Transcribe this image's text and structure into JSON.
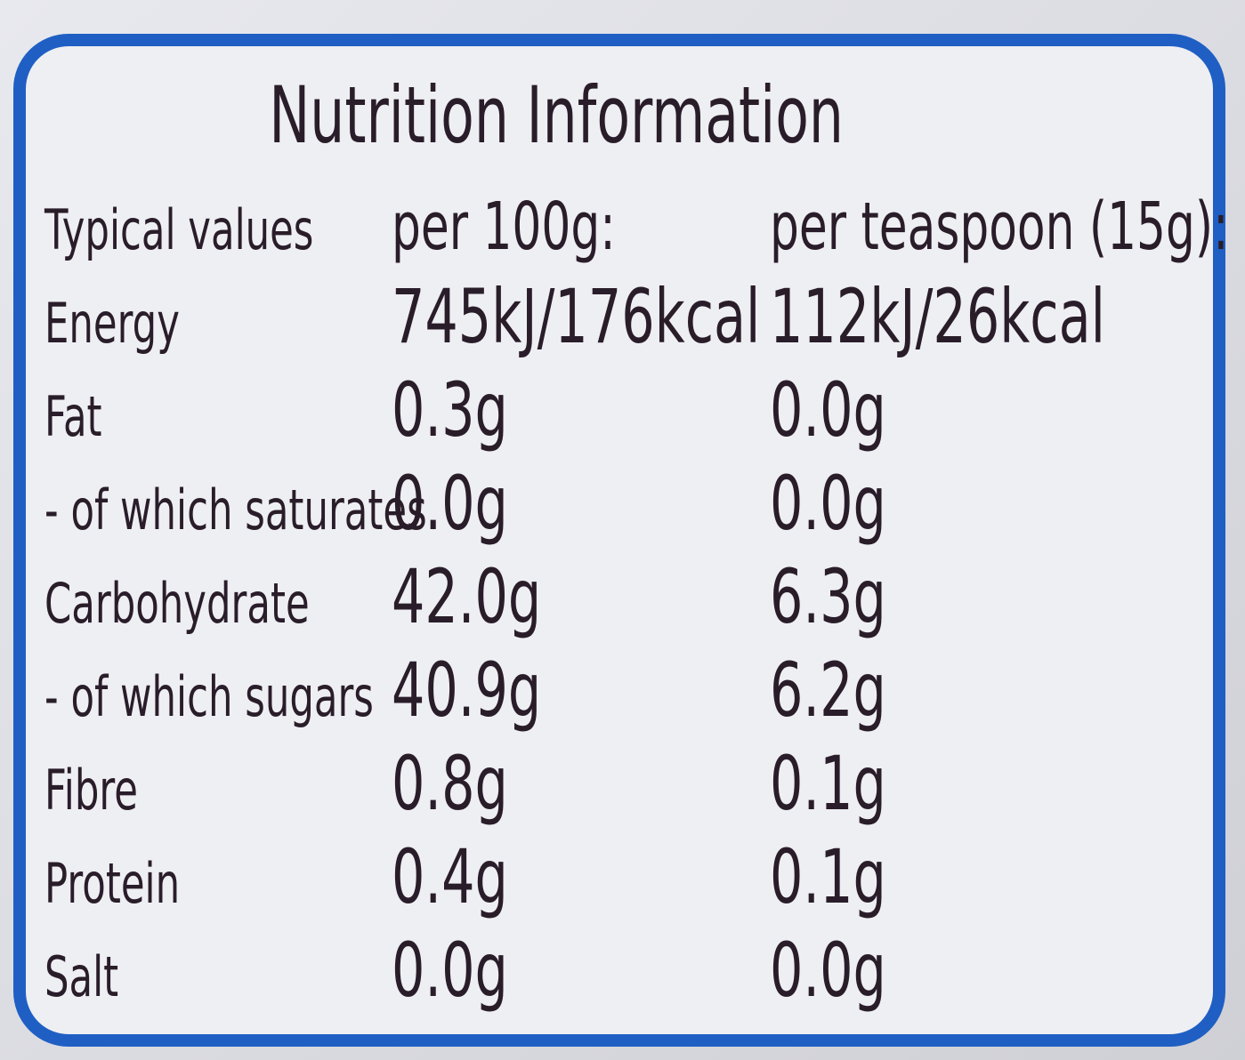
{
  "header": {
    "title": "Nutrition Information"
  },
  "table": {
    "columns": [
      "Typical values",
      "per 100g:",
      "per teaspoon (15g):"
    ],
    "rows": [
      [
        "Energy",
        "745kJ/176kcal",
        "112kJ/26kcal"
      ],
      [
        "Fat",
        "0.3g",
        "0.0g"
      ],
      [
        "- of which saturates",
        "0.0g",
        "0.0g"
      ],
      [
        "Carbohydrate",
        "42.0g",
        "6.3g"
      ],
      [
        "- of which sugars",
        "40.9g",
        "6.2g"
      ],
      [
        "Fibre",
        "0.8g",
        "0.1g"
      ],
      [
        "Protein",
        "0.4g",
        "0.1g"
      ],
      [
        "Salt",
        "0.0g",
        "0.0g"
      ]
    ]
  }
}
